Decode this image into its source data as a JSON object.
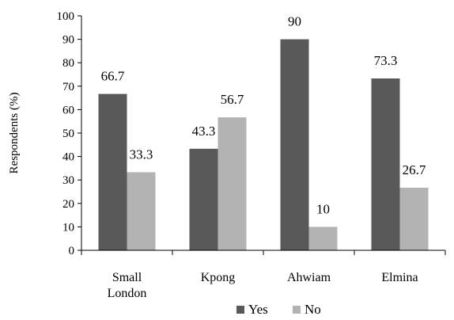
{
  "chart_data": {
    "type": "bar",
    "ylabel": "Respondents (%)",
    "xlabel": "",
    "ylim": [
      0,
      100
    ],
    "yticks": [
      0,
      10,
      20,
      30,
      40,
      50,
      60,
      70,
      80,
      90,
      100
    ],
    "categories": [
      [
        "Small",
        "London"
      ],
      [
        "Kpong"
      ],
      [
        "Ahwiam"
      ],
      [
        "Elmina"
      ]
    ],
    "series": [
      {
        "name": "Yes",
        "values": [
          66.7,
          43.3,
          90,
          73.3
        ],
        "labels": [
          "66.7",
          "43.3",
          "90",
          "73.3"
        ],
        "color": "#595959"
      },
      {
        "name": "No",
        "values": [
          33.3,
          56.7,
          10,
          26.7
        ],
        "labels": [
          "33.3",
          "56.7",
          "10",
          "26.7"
        ],
        "color": "#b3b3b3"
      }
    ],
    "grid": false,
    "legend_position": "bottom"
  }
}
